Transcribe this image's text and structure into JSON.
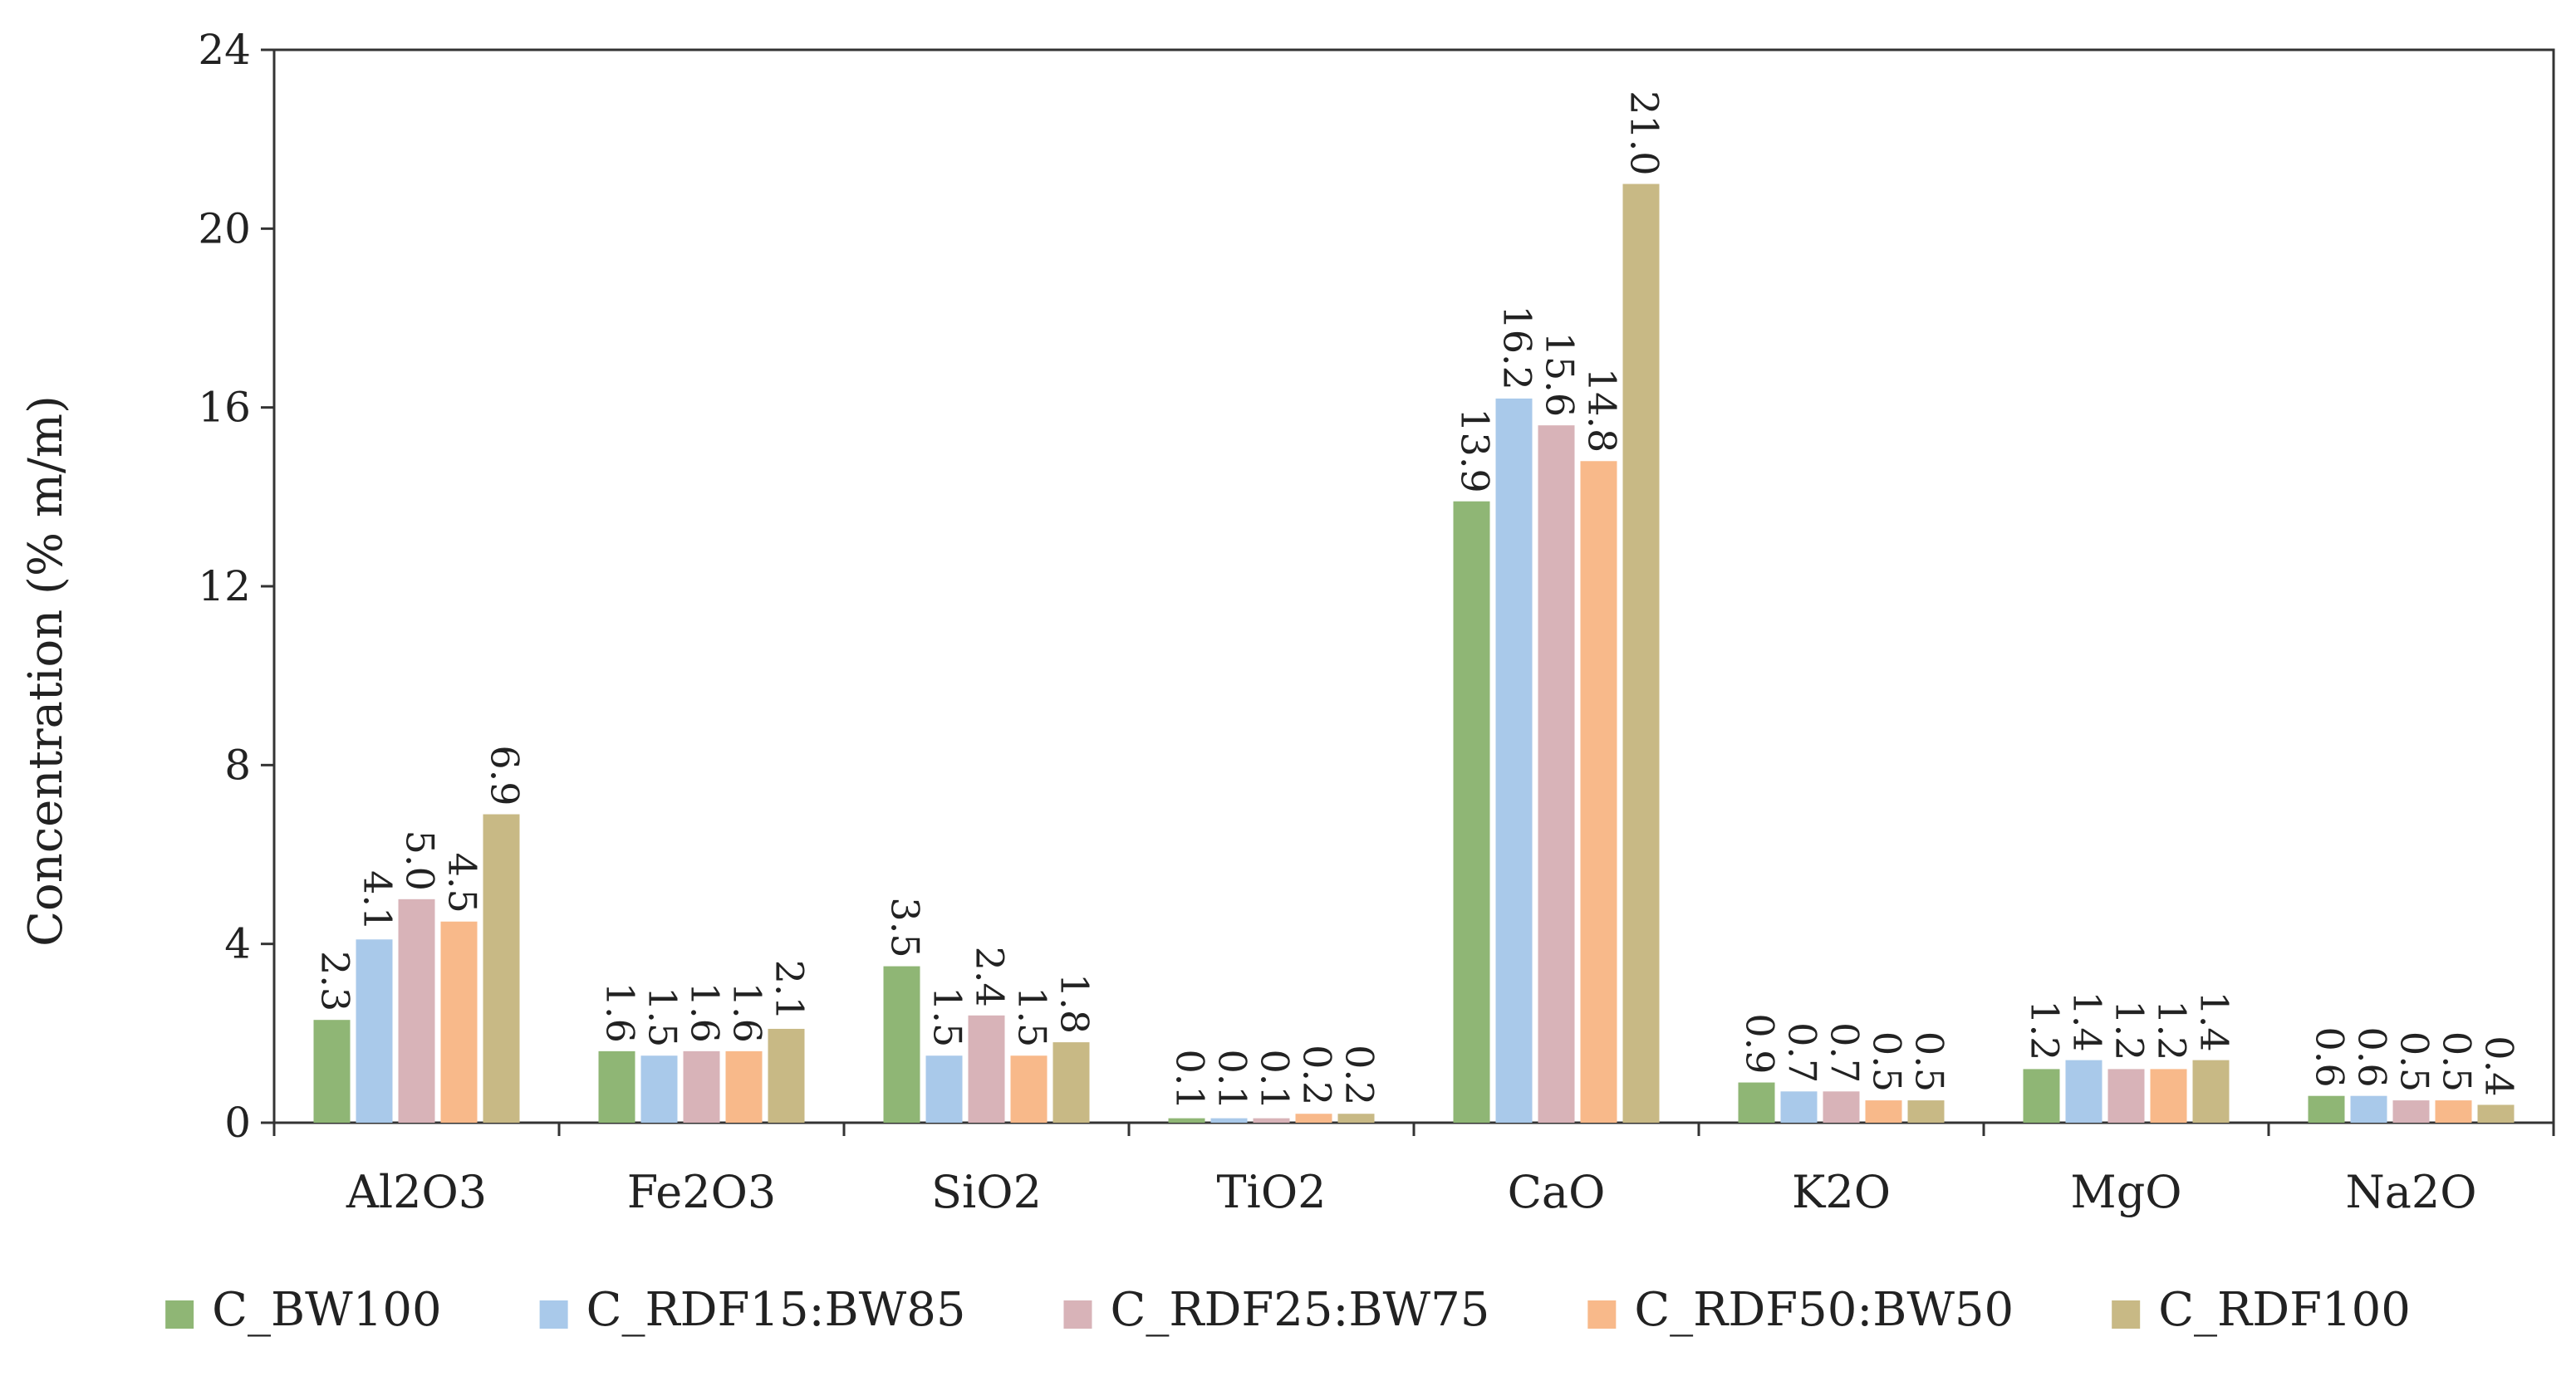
{
  "chart_data": {
    "type": "bar",
    "title": "",
    "xlabel": "",
    "ylabel": "Concentration (% m/m)",
    "ylim": [
      0,
      24
    ],
    "yticks": [
      0,
      4,
      8,
      12,
      16,
      20,
      24
    ],
    "categories": [
      "Al2O3",
      "Fe2O3",
      "SiO2",
      "TiO2",
      "CaO",
      "K2O",
      "MgO",
      "Na2O"
    ],
    "series": [
      {
        "name": "C_BW100",
        "color": "#8fb675",
        "values": [
          2.3,
          1.6,
          3.5,
          0.1,
          13.9,
          0.9,
          1.2,
          0.6
        ],
        "labels": [
          "2.3",
          "1.6",
          "3.5",
          "0.1",
          "13.9",
          "0.9",
          "1.2",
          "0.6"
        ]
      },
      {
        "name": "C_RDF15:BW85",
        "color": "#a9c9ea",
        "values": [
          4.1,
          1.5,
          1.5,
          0.1,
          16.2,
          0.7,
          1.4,
          0.6
        ],
        "labels": [
          "4.1",
          "1.5",
          "1.5",
          "0.1",
          "16.2",
          "0.7",
          "1.4",
          "0.6"
        ]
      },
      {
        "name": "C_RDF25:BW75",
        "color": "#d8b3b8",
        "values": [
          5.0,
          1.6,
          2.4,
          0.1,
          15.6,
          0.7,
          1.2,
          0.5
        ],
        "labels": [
          "5.0",
          "1.6",
          "2.4",
          "0.1",
          "15.6",
          "0.7",
          "1.2",
          "0.5"
        ]
      },
      {
        "name": "C_RDF50:BW50",
        "color": "#f8b98a",
        "values": [
          4.5,
          1.6,
          1.5,
          0.2,
          14.8,
          0.5,
          1.2,
          0.5
        ],
        "labels": [
          "4.5",
          "1.6",
          "1.5",
          "0.2",
          "14.8",
          "0.5",
          "1.2",
          "0.5"
        ]
      },
      {
        "name": "C_RDF100",
        "color": "#c8b985",
        "values": [
          6.9,
          2.1,
          1.8,
          0.2,
          21.0,
          0.5,
          1.4,
          0.4
        ],
        "labels": [
          "6.9",
          "2.1",
          "1.8",
          "0.2",
          "21.0",
          "0.5",
          "1.4",
          "0.4"
        ]
      }
    ],
    "grid": false,
    "legend_position": "bottom",
    "data_labels": "rotated-vertical"
  }
}
